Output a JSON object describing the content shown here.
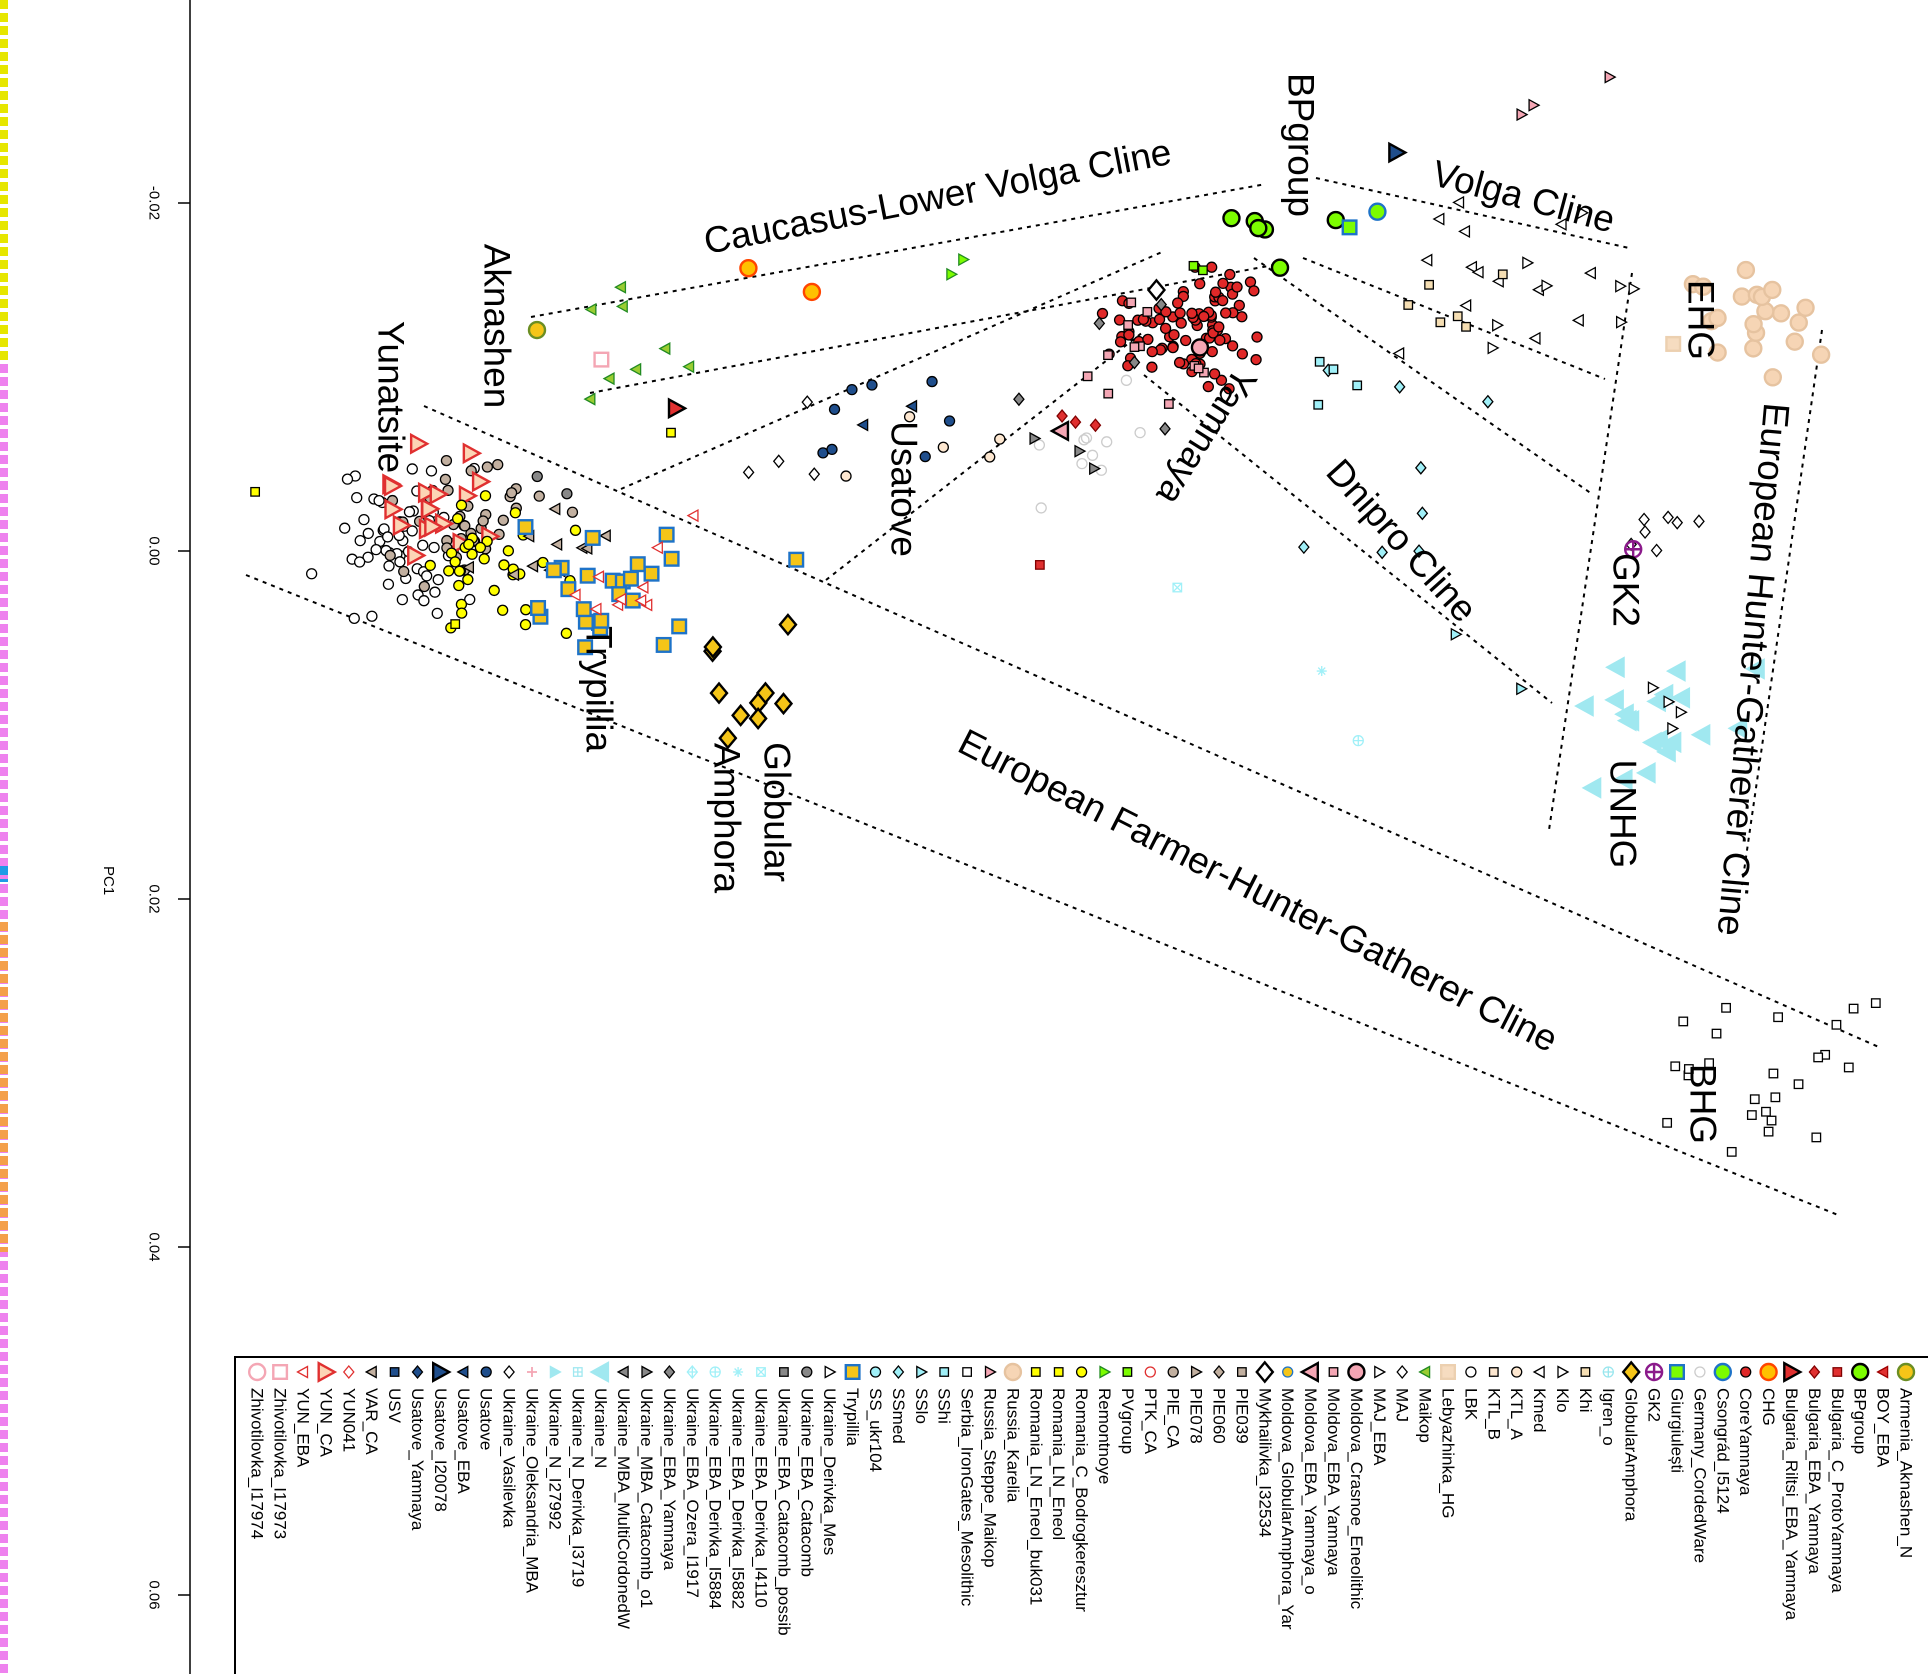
{
  "chart_data": {
    "type": "scatter",
    "orientation": "rotated 90 degrees clockwise",
    "ylabel": "PC1",
    "pc1_ticks": [
      -0.02,
      0.0,
      0.02,
      0.04,
      0.06
    ],
    "pc1_tick_labels": [
      "-0.02",
      "0.00",
      "0.02",
      "0.04",
      "0.06"
    ],
    "grid": false,
    "annotations": {
      "caucasus": "Caucasus-Lower Volga Cline",
      "volga": "Volga Cline",
      "bpgroup": "BPgroup",
      "aknashen": "Aknashen",
      "yunatsite": "Yunatsite",
      "usatove": "Usatove",
      "trypillia": "Trypillia",
      "globular": "Globular",
      "amphora": "Amphora",
      "yamnaya": "Yamnaya",
      "dnipro": "Dnipro Cline",
      "ehg": "EHG",
      "gk2": "GK2",
      "unhg": "UNHG",
      "ehg_cline": "European Hunter-Gatherer Cline",
      "efhg_cline": "European Farmer-Hunter-Gatherer Cline",
      "bhg": "BHG"
    },
    "legend_position": "bottom",
    "legend": [
      {
        "label": "Armenia_Aknashen_N",
        "shape": "circle",
        "fill": "#f5c518",
        "stroke": "#6b8e23",
        "big": true
      },
      {
        "label": "BOY_EBA",
        "shape": "tri-left",
        "fill": "#e03030",
        "stroke": "#a00000"
      },
      {
        "label": "BPgroup",
        "shape": "circle",
        "fill": "#7cfc00",
        "stroke": "#000000",
        "big": true
      },
      {
        "label": "Bulgaria_C_ProtoYamnaya",
        "shape": "square",
        "fill": "#e03030",
        "stroke": "#800000"
      },
      {
        "label": "Bulgaria_EBA_Yamnaya",
        "shape": "diamond",
        "fill": "#e03030",
        "stroke": "#800000"
      },
      {
        "label": "Bulgaria_Riltsi_EBA_Yamnaya",
        "shape": "tri-right",
        "fill": "#e03030",
        "stroke": "#000000",
        "big": true
      },
      {
        "label": "CHG",
        "shape": "circle",
        "fill": "#ffc000",
        "stroke": "#ff4500",
        "big": true
      },
      {
        "label": "CoreYamnaya",
        "shape": "circle",
        "fill": "#e02828",
        "stroke": "#000000"
      },
      {
        "label": "Csongrád_I5124",
        "shape": "circle",
        "fill": "#7cfc00",
        "stroke": "#1e73c8",
        "big": true
      },
      {
        "label": "Germany_CordedWare",
        "shape": "circle",
        "fill": "none",
        "stroke": "#cccccc"
      },
      {
        "label": "Giurgiulești",
        "shape": "square",
        "fill": "#7cfc00",
        "stroke": "#1e73c8",
        "big": true
      },
      {
        "label": "GK2",
        "shape": "circle-cross",
        "fill": "none",
        "stroke": "#8b1a8b",
        "big": true
      },
      {
        "label": "GlobularAmphora",
        "shape": "diamond",
        "fill": "#f5c518",
        "stroke": "#000000",
        "big": true
      },
      {
        "label": "Igren_o",
        "shape": "circle-plus",
        "fill": "none",
        "stroke": "#99e6ee"
      },
      {
        "label": "Khi",
        "shape": "square",
        "fill": "#f5deb3",
        "stroke": "#000000"
      },
      {
        "label": "Klo",
        "shape": "tri-right",
        "fill": "#ffffff",
        "stroke": "#000000"
      },
      {
        "label": "Kmed",
        "shape": "tri-left",
        "fill": "#ffffff",
        "stroke": "#000000"
      },
      {
        "label": "KTL_A",
        "shape": "circle",
        "fill": "#fde7d0",
        "stroke": "#000000"
      },
      {
        "label": "KTL_B",
        "shape": "square",
        "fill": "#fde7d0",
        "stroke": "#000000"
      },
      {
        "label": "LBK",
        "shape": "circle",
        "fill": "#ffffff",
        "stroke": "#000000"
      },
      {
        "label": "Lebyazhinka_HG",
        "shape": "square",
        "fill": "#f6dcc0",
        "stroke": "#ecd0b0",
        "big": true
      },
      {
        "label": "Maikop",
        "shape": "tri-left",
        "fill": "#9acd32",
        "stroke": "#228b22"
      },
      {
        "label": "MAJ",
        "shape": "diamond",
        "fill": "#ffffff",
        "stroke": "#000000"
      },
      {
        "label": "MAJ_EBA",
        "shape": "tri-right",
        "fill": "#ffffff",
        "stroke": "#000000"
      },
      {
        "label": "Moldova_Crasnoe_Eneolithic",
        "shape": "circle",
        "fill": "#f4a6b4",
        "stroke": "#000000",
        "big": true
      },
      {
        "label": "Moldova_EBA_Yamnaya",
        "shape": "square",
        "fill": "#f4a6b4",
        "stroke": "#000000"
      },
      {
        "label": "Moldova_EBA_Yamnaya_o",
        "shape": "tri-left",
        "fill": "#f4a6b4",
        "stroke": "#000000",
        "big": true
      },
      {
        "label": "Moldova_GlobularAmphora_Yar",
        "shape": "circle",
        "fill": "#f5c518",
        "stroke": "#1e73c8"
      },
      {
        "label": "Mykhailivka_I32534",
        "shape": "diamond",
        "fill": "#ffffff",
        "stroke": "#000000",
        "big": true
      },
      {
        "label": "PIE039",
        "shape": "square",
        "fill": "#c2b0a0",
        "stroke": "#000000"
      },
      {
        "label": "PIE060",
        "shape": "diamond",
        "fill": "#c2b0a0",
        "stroke": "#000000"
      },
      {
        "label": "PIE078",
        "shape": "tri-right",
        "fill": "#c2b0a0",
        "stroke": "#000000"
      },
      {
        "label": "PIE_CA",
        "shape": "circle",
        "fill": "#c2b0a0",
        "stroke": "#000000"
      },
      {
        "label": "PTK_CA",
        "shape": "circle",
        "fill": "#ffffff",
        "stroke": "#e03030"
      },
      {
        "label": "PVgroup",
        "shape": "square",
        "fill": "#7cfc00",
        "stroke": "#000000"
      },
      {
        "label": "Remontnoye",
        "shape": "tri-right",
        "fill": "#7cfc00",
        "stroke": "#228b22"
      },
      {
        "label": "Romania_C_Bodrogkeresztur",
        "shape": "circle",
        "fill": "#ffff00",
        "stroke": "#000000"
      },
      {
        "label": "Romania_LN_Eneol",
        "shape": "square",
        "fill": "#ffff00",
        "stroke": "#000000"
      },
      {
        "label": "Romania_LN_Eneol_buk031",
        "shape": "square",
        "fill": "#ffff00",
        "stroke": "#000000"
      },
      {
        "label": "Russia_Karelia",
        "shape": "circle",
        "fill": "#f6d5b5",
        "stroke": "#e6c3a0",
        "big": true
      },
      {
        "label": "Russia_Steppe_Maikop",
        "shape": "tri-right",
        "fill": "#f4a6b4",
        "stroke": "#000000"
      },
      {
        "label": "Serbia_IronGates_Mesolithic",
        "shape": "square",
        "fill": "#ffffff",
        "stroke": "#000000"
      },
      {
        "label": "SShi",
        "shape": "square",
        "fill": "#a0f0f8",
        "stroke": "#000000"
      },
      {
        "label": "SSlo",
        "shape": "tri-right",
        "fill": "#a0f0f8",
        "stroke": "#000000"
      },
      {
        "label": "SSmed",
        "shape": "diamond",
        "fill": "#a0f0f8",
        "stroke": "#000000"
      },
      {
        "label": "SS_ukr104",
        "shape": "circle",
        "fill": "#a0f0f8",
        "stroke": "#000000"
      },
      {
        "label": "Trypillia",
        "shape": "square",
        "fill": "#f5c518",
        "stroke": "#1e73c8",
        "big": true
      },
      {
        "label": "Ukraine_Derivka_Mes",
        "shape": "tri-right",
        "fill": "#ffffff",
        "stroke": "#000000"
      },
      {
        "label": "Ukraine_EBA_Catacomb",
        "shape": "circle",
        "fill": "#888888",
        "stroke": "#000000"
      },
      {
        "label": "Ukraine_EBA_Catacomb_possib",
        "shape": "square",
        "fill": "#888888",
        "stroke": "#000000"
      },
      {
        "label": "Ukraine_EBA_Derivka_I4110",
        "shape": "square-x",
        "fill": "none",
        "stroke": "#a0f0f8"
      },
      {
        "label": "Ukraine_EBA_Derivka_I5882",
        "shape": "asterisk",
        "fill": "none",
        "stroke": "#a0f0f8"
      },
      {
        "label": "Ukraine_EBA_Derivka_I5884",
        "shape": "circle-plus",
        "fill": "none",
        "stroke": "#a0f0f8"
      },
      {
        "label": "Ukraine_EBA_Ozera_I1917",
        "shape": "diamond-plus",
        "fill": "none",
        "stroke": "#a0f0f8"
      },
      {
        "label": "Ukraine_EBA_Yamnaya",
        "shape": "diamond",
        "fill": "#888888",
        "stroke": "#000000"
      },
      {
        "label": "Ukraine_MBA_Catacomb_o1",
        "shape": "tri-right",
        "fill": "#888888",
        "stroke": "#000000"
      },
      {
        "label": "Ukraine_MBA_MultiCordonedW",
        "shape": "tri-left",
        "fill": "#888888",
        "stroke": "#000000"
      },
      {
        "label": "Ukraine_N",
        "shape": "tri-left",
        "fill": "#a0e8f0",
        "stroke": "#a0e8f0",
        "big": true
      },
      {
        "label": "Ukraine_N_Derivka_I3719",
        "shape": "square-plus",
        "fill": "none",
        "stroke": "#a0e8f0"
      },
      {
        "label": "Ukraine_N_I27992",
        "shape": "tri-right",
        "fill": "#a0e8f0",
        "stroke": "#a0e8f0"
      },
      {
        "label": "Ukraine_Oleksandria_MBA",
        "shape": "plus",
        "fill": "none",
        "stroke": "#f4a6b4"
      },
      {
        "label": "Ukraine_Vasilevka",
        "shape": "diamond",
        "fill": "#ffffff",
        "stroke": "#000000"
      },
      {
        "label": "Usatove",
        "shape": "circle",
        "fill": "#1f4e8c",
        "stroke": "#000000"
      },
      {
        "label": "Usatove_EBA",
        "shape": "tri-left",
        "fill": "#1f4e8c",
        "stroke": "#000000"
      },
      {
        "label": "Usatove_I20078",
        "shape": "tri-right",
        "fill": "#1f4e8c",
        "stroke": "#000000",
        "big": true
      },
      {
        "label": "Usatove_Yamnaya",
        "shape": "diamond",
        "fill": "#1f4e8c",
        "stroke": "#000000"
      },
      {
        "label": "USV",
        "shape": "square",
        "fill": "#1f4e8c",
        "stroke": "#000000"
      },
      {
        "label": "VAR_CA",
        "shape": "tri-left",
        "fill": "#c2b0a0",
        "stroke": "#000000"
      },
      {
        "label": "YUN041",
        "shape": "diamond",
        "fill": "#ffffff",
        "stroke": "#e03030"
      },
      {
        "label": "YUN_CA",
        "shape": "tri-right",
        "fill": "#fcd5b5",
        "stroke": "#e03030",
        "big": true
      },
      {
        "label": "YUN_EBA",
        "shape": "tri-left",
        "fill": "#ffffff",
        "stroke": "#e03030"
      },
      {
        "label": "Zhivotilovka_I17973",
        "shape": "square",
        "fill": "#ffffff",
        "stroke": "#f4a6b4",
        "big": true
      },
      {
        "label": "Zhivotilovka_I17974",
        "shape": "circle",
        "fill": "#ffffff",
        "stroke": "#f4a6b4",
        "big": true
      }
    ],
    "point_groups": [
      {
        "g": 19,
        "pc1": -0.0006,
        "pc2": -0.0382,
        "sd": 0.0025,
        "n": 60
      },
      {
        "g": 32,
        "pc1": -0.002,
        "pc2": -0.0336,
        "sd": 0.0021,
        "n": 40
      },
      {
        "g": 69,
        "pc1": -0.0027,
        "pc2": -0.0368,
        "sd": 0.0018,
        "n": 18
      },
      {
        "g": 36,
        "pc1": 0.0016,
        "pc2": -0.0326,
        "sd": 0.0021,
        "n": 35
      },
      {
        "g": 67,
        "pc1": 0.0001,
        "pc2": -0.0298,
        "sd": 0.0018,
        "n": 12
      },
      {
        "g": 46,
        "pc1": 0.0023,
        "pc2": -0.0262,
        "sd": 0.0025,
        "n": 25
      },
      {
        "g": 70,
        "pc1": 0.0023,
        "pc2": -0.0241,
        "sd": 0.0021,
        "n": 10
      },
      {
        "g": 12,
        "pc1": 0.0083,
        "pc2": -0.0177,
        "sd": 0.0021,
        "n": 10
      },
      {
        "g": 0,
        "pc1": -0.0127,
        "pc2": -0.03,
        "sd": 0,
        "n": 1
      },
      {
        "g": 21,
        "pc1": -0.0122,
        "pc2": -0.0241,
        "sd": 0.0025,
        "n": 8
      },
      {
        "g": 6,
        "pc1": -0.0155,
        "pc2": -0.0175,
        "sd": 0.0014,
        "n": 2
      },
      {
        "g": 35,
        "pc1": -0.0161,
        "pc2": -0.0053,
        "sd": 0.0011,
        "n": 2
      },
      {
        "g": 5,
        "pc1": -0.0082,
        "pc2": -0.022,
        "sd": 0,
        "n": 1
      },
      {
        "g": 62,
        "pc1": -0.0073,
        "pc2": -0.0103,
        "sd": 0.0028,
        "n": 8
      },
      {
        "g": 17,
        "pc1": -0.0069,
        "pc2": -0.0086,
        "sd": 0.0028,
        "n": 5
      },
      {
        "g": 63,
        "pc1": -0.0083,
        "pc2": -0.0107,
        "sd": 0.0014,
        "n": 2
      },
      {
        "g": 61,
        "pc1": -0.0055,
        "pc2": -0.0149,
        "sd": 0.0021,
        "n": 4
      },
      {
        "g": 48,
        "pc1": -0.0041,
        "pc2": -0.03,
        "sd": 0.0007,
        "n": 2
      },
      {
        "g": 7,
        "pc1": -0.0129,
        "pc2": 0.0077,
        "sd": 0.002,
        "n": 90
      },
      {
        "g": 25,
        "pc1": -0.0112,
        "pc2": 0.0052,
        "sd": 0.0021,
        "n": 12
      },
      {
        "g": 24,
        "pc1": -0.0117,
        "pc2": 0.0081,
        "sd": 0,
        "n": 1
      },
      {
        "g": 2,
        "pc1": -0.0186,
        "pc2": 0.013,
        "sd": 0.0018,
        "n": 6
      },
      {
        "g": 34,
        "pc1": -0.0163,
        "pc2": 0.0077,
        "sd": 0.0004,
        "n": 2
      },
      {
        "g": 28,
        "pc1": -0.015,
        "pc2": 0.0056,
        "sd": 0,
        "n": 1
      },
      {
        "g": 54,
        "pc1": -0.0105,
        "pc2": 0.0028,
        "sd": 0.0021,
        "n": 5
      },
      {
        "g": 9,
        "pc1": -0.0062,
        "pc2": 0.0017,
        "sd": 0.0018,
        "n": 10
      },
      {
        "g": 26,
        "pc1": -0.0069,
        "pc2": 0.0001,
        "sd": 0,
        "n": 1
      },
      {
        "g": 4,
        "pc1": -0.0076,
        "pc2": 0.0006,
        "sd": 0.0011,
        "n": 3
      },
      {
        "g": 55,
        "pc1": -0.0052,
        "pc2": 0.0013,
        "sd": 0.0018,
        "n": 3
      },
      {
        "g": 10,
        "pc1": -0.0186,
        "pc2": 0.0167,
        "sd": 0,
        "n": 1
      },
      {
        "g": 8,
        "pc1": -0.0195,
        "pc2": 0.0183,
        "sd": 0,
        "n": 1
      },
      {
        "g": 16,
        "pc1": -0.0165,
        "pc2": 0.0247,
        "sd": 0.0035,
        "n": 14
      },
      {
        "g": 15,
        "pc1": -0.0147,
        "pc2": 0.0275,
        "sd": 0.0032,
        "n": 8
      },
      {
        "g": 14,
        "pc1": -0.0158,
        "pc2": 0.024,
        "sd": 0.0028,
        "n": 6
      },
      {
        "g": 40,
        "pc1": -0.0272,
        "pc2": 0.0282,
        "sd": 0.0018,
        "n": 3
      },
      {
        "g": 64,
        "pc1": -0.0229,
        "pc2": 0.0194,
        "sd": 0,
        "n": 1
      },
      {
        "g": 39,
        "pc1": -0.0136,
        "pc2": 0.0395,
        "sd": 0.0021,
        "n": 20
      },
      {
        "g": 20,
        "pc1": -0.0119,
        "pc2": 0.0353,
        "sd": 0,
        "n": 1
      },
      {
        "g": 44,
        "pc1": -0.0062,
        "pc2": 0.019,
        "sd": 0.0035,
        "n": 8
      },
      {
        "g": 42,
        "pc1": -0.0098,
        "pc2": 0.0151,
        "sd": 0.0014,
        "n": 4
      },
      {
        "g": 22,
        "pc1": -0.0013,
        "pc2": 0.0338,
        "sd": 0.0014,
        "n": 7
      },
      {
        "g": 11,
        "pc1": -0.0001,
        "pc2": 0.033,
        "sd": 0,
        "n": 1
      },
      {
        "g": 57,
        "pc1": 0.0092,
        "pc2": 0.0338,
        "sd": 0.0025,
        "n": 20
      },
      {
        "g": 47,
        "pc1": 0.0093,
        "pc2": 0.0342,
        "sd": 0.0011,
        "n": 4
      },
      {
        "g": 43,
        "pc1": 0.0065,
        "pc2": 0.0256,
        "sd": 0.0035,
        "n": 2
      },
      {
        "g": 41,
        "pc1": 0.0305,
        "pc2": 0.0409,
        "sd": 0.0035,
        "n": 25
      },
      {
        "g": 51,
        "pc1": 0.0069,
        "pc2": 0.0151,
        "sd": 0,
        "n": 1
      },
      {
        "g": 52,
        "pc1": 0.0109,
        "pc2": 0.0172,
        "sd": 0,
        "n": 1
      },
      {
        "g": 50,
        "pc1": 0.0021,
        "pc2": 0.0068,
        "sd": 0,
        "n": 1
      },
      {
        "g": 3,
        "pc1": 0.0008,
        "pc2": -0.0011,
        "sd": 0,
        "n": 1
      },
      {
        "g": 46,
        "pc1": 0.0005,
        "pc2": -0.0151,
        "sd": 0,
        "n": 1
      },
      {
        "g": 37,
        "pc1": -0.0034,
        "pc2": -0.0462,
        "sd": 0,
        "n": 1
      },
      {
        "g": 37,
        "pc1": 0.0042,
        "pc2": -0.0347,
        "sd": 0,
        "n": 1
      },
      {
        "g": 38,
        "pc1": -0.0068,
        "pc2": -0.0223,
        "sd": 0,
        "n": 1
      },
      {
        "g": 71,
        "pc1": -0.011,
        "pc2": -0.0263,
        "sd": 0,
        "n": 1
      }
    ]
  }
}
